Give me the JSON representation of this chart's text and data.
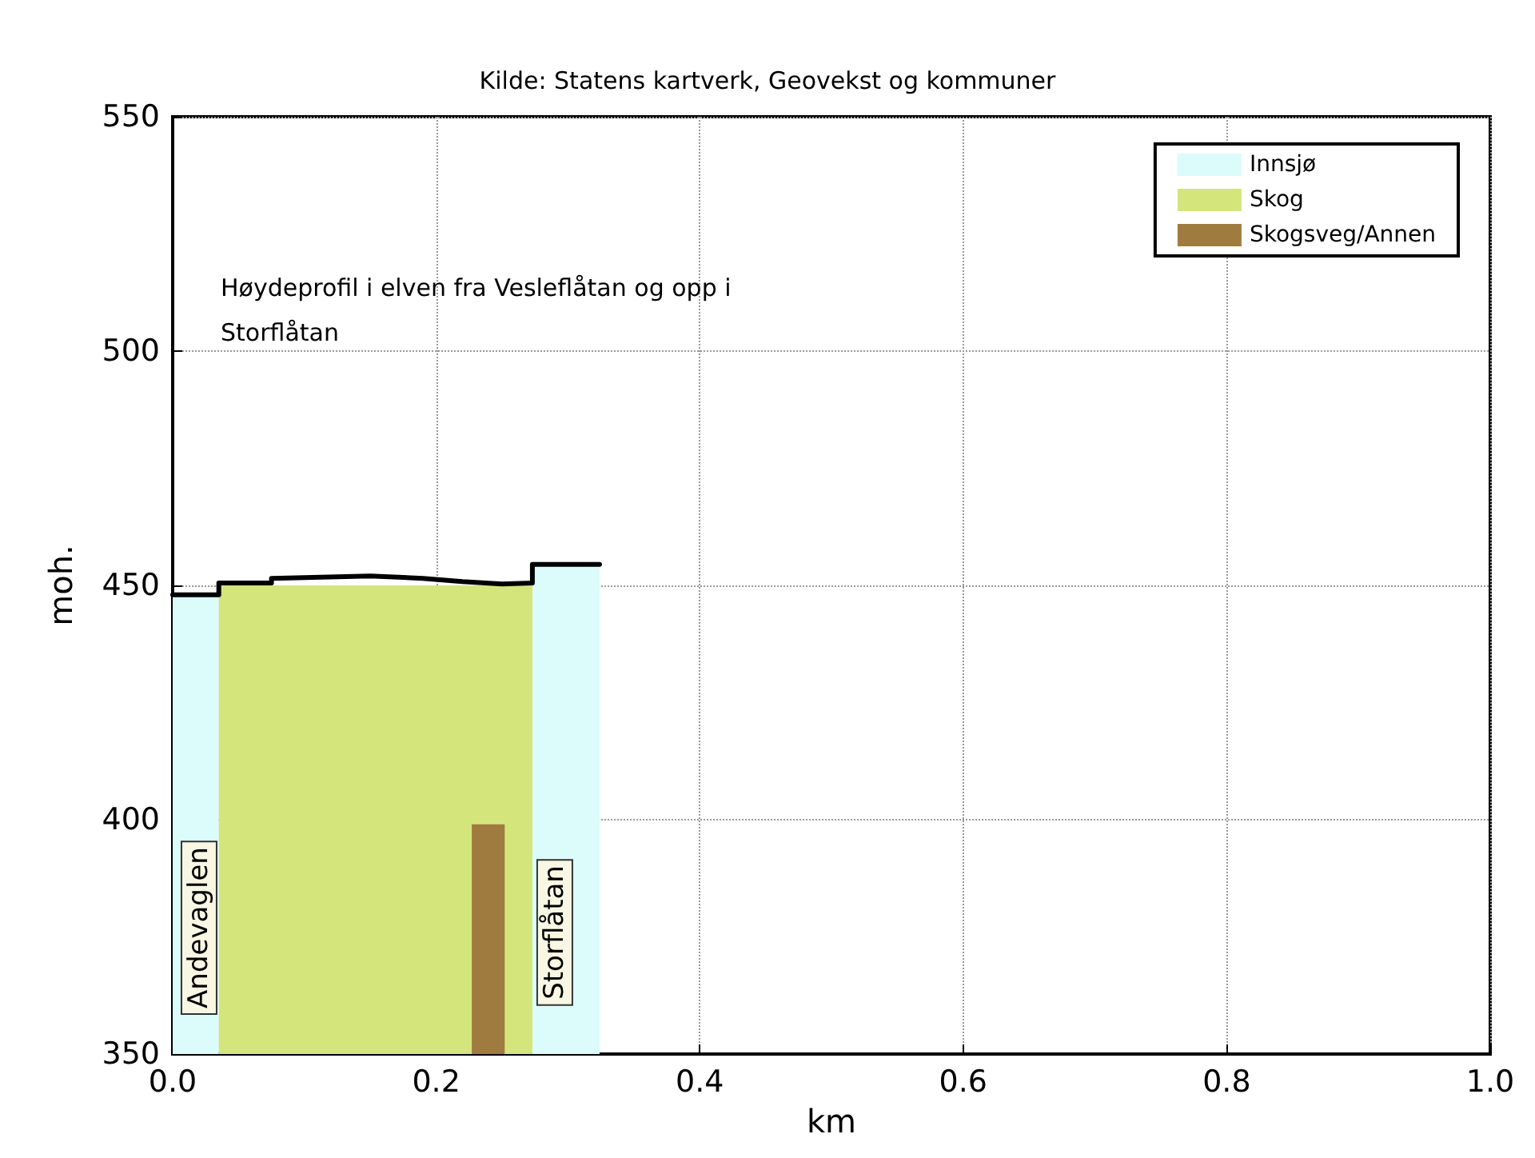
{
  "chart_data": {
    "type": "area",
    "title": "Kilde: Statens kartverk, Geovekst og kommuner",
    "xlabel": "km",
    "ylabel": "moh.",
    "annotations": [
      "Høydeprofil i elven fra Vesleflåtan og opp i Storflåtan",
      "Andevaglen",
      "Storflåtan"
    ],
    "series": [
      {
        "name": "Innsjø",
        "color": "#dcfbfb",
        "x": [
          0,
          0.035
        ],
        "values": [
          448,
          448
        ]
      },
      {
        "type": "area",
        "color": "#dcfbfb",
        "x": [
          0.273,
          0.324
        ],
        "values": [
          454,
          454
        ]
      },
      {
        "name": "Skog",
        "color": "#d4e57c",
        "x": [
          0.035,
          0.273
        ],
        "values": [
          450,
          450
        ]
      },
      {
        "name": "Skogsveg/Annen",
        "color": "#a07b40",
        "x": [
          0.227,
          0.252
        ],
        "values": [
          399,
          399
        ]
      },
      {
        "type": "line",
        "color": "#000000",
        "x": [
          0,
          0.035,
          0.035,
          0.075,
          0.075,
          0.15,
          0.19,
          0.22,
          0.25,
          0.273,
          0.273,
          0.324
        ],
        "values": [
          448,
          448,
          450.5,
          450.5,
          451.5,
          452,
          451.5,
          450.8,
          450.3,
          450.5,
          454.5,
          454.5
        ]
      }
    ],
    "xlim": [
      0,
      1
    ],
    "xticks": [
      {
        "value": 0,
        "label": "0.0"
      },
      {
        "value": 0.2,
        "label": "0.2"
      },
      {
        "value": 0.4,
        "label": "0.4"
      },
      {
        "value": 0.6,
        "label": "0.6"
      },
      {
        "value": 0.8,
        "label": "0.8"
      },
      {
        "value": 1,
        "label": "1.0"
      }
    ],
    "ylim": [
      350,
      550
    ],
    "yticks": [
      350,
      400,
      450,
      500,
      550
    ],
    "grid": true,
    "legend": "top right",
    "marker": "none",
    "line_style": "solid"
  }
}
